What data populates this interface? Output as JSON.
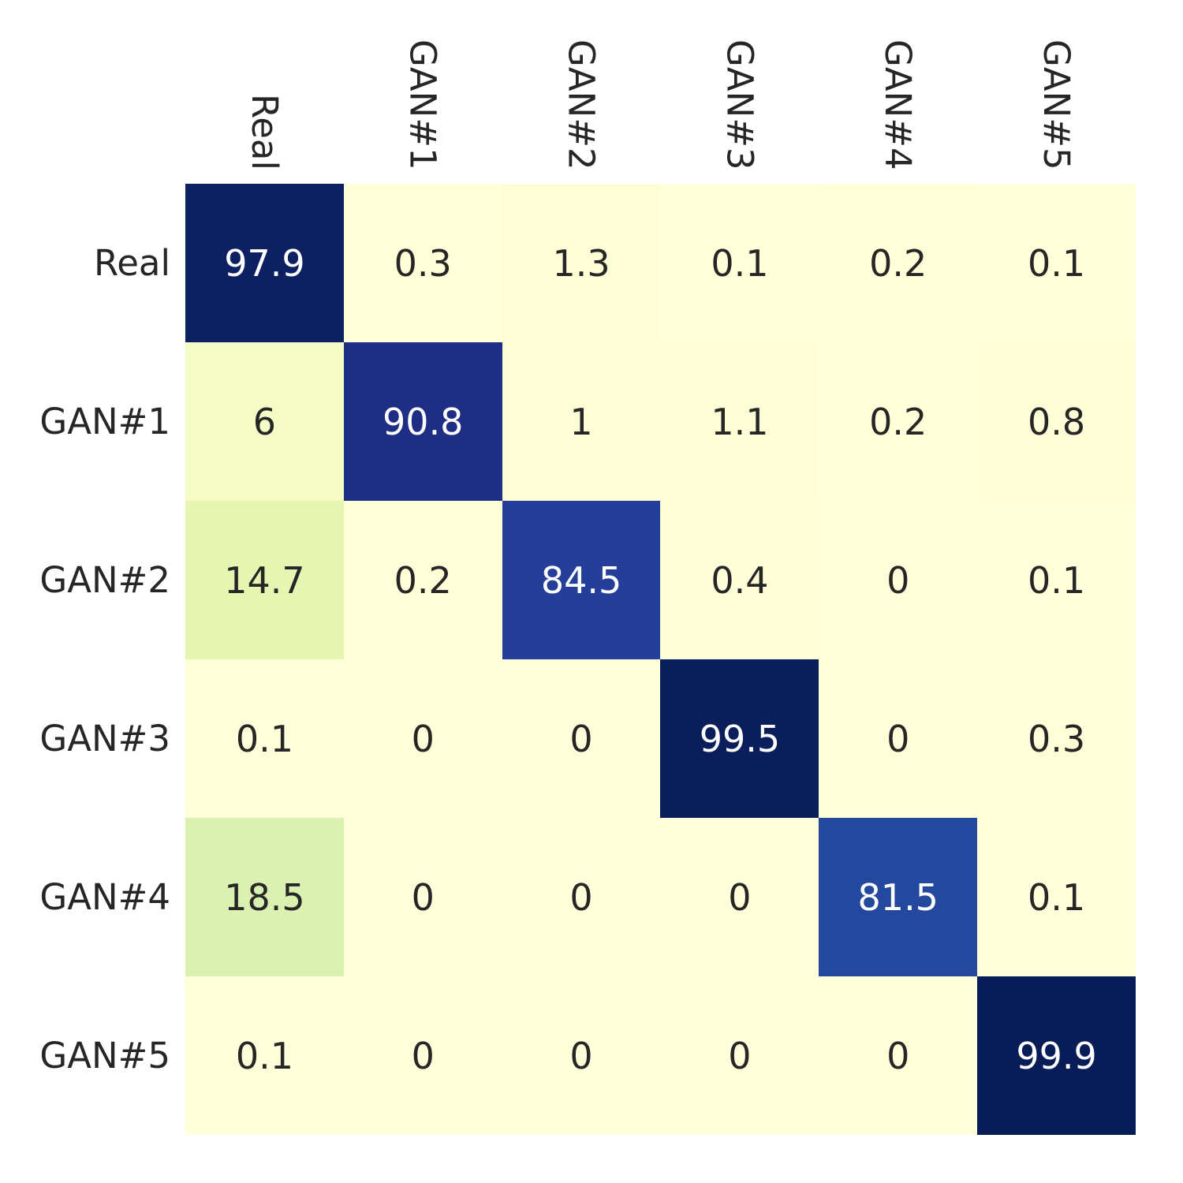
{
  "figure": {
    "kind": "confusion-matrix-heatmap",
    "background": "#ffffff"
  },
  "chart_data": {
    "type": "heatmap",
    "title": "",
    "row_labels": [
      "Real",
      "GAN#1",
      "GAN#2",
      "GAN#3",
      "GAN#4",
      "GAN#5"
    ],
    "col_labels": [
      "Real",
      "GAN#1",
      "GAN#2",
      "GAN#3",
      "GAN#4",
      "GAN#5"
    ],
    "matrix": [
      [
        97.9,
        0.3,
        1.3,
        0.1,
        0.2,
        0.1
      ],
      [
        6,
        90.8,
        1,
        1.1,
        0.2,
        0.8
      ],
      [
        14.7,
        0.2,
        84.5,
        0.4,
        0,
        0.1
      ],
      [
        0.1,
        0,
        0,
        99.5,
        0,
        0.3
      ],
      [
        18.5,
        0,
        0,
        0,
        81.5,
        0.1
      ],
      [
        0.1,
        0,
        0,
        0,
        0,
        99.9
      ]
    ],
    "value_range": [
      0,
      100
    ],
    "colorbar": "none",
    "grid": "off",
    "colormap": {
      "name": "YlGnBu",
      "stops": [
        {
          "t": 0.0,
          "color": "#ffffd9"
        },
        {
          "t": 0.125,
          "color": "#edf8b1"
        },
        {
          "t": 0.25,
          "color": "#c7e9b4"
        },
        {
          "t": 0.375,
          "color": "#7fcdbb"
        },
        {
          "t": 0.5,
          "color": "#41b6c4"
        },
        {
          "t": 0.625,
          "color": "#1d91c0"
        },
        {
          "t": 0.75,
          "color": "#225ea8"
        },
        {
          "t": 0.875,
          "color": "#253494"
        },
        {
          "t": 1.0,
          "color": "#081d58"
        }
      ]
    },
    "annotation_colors": {
      "on_light": "#262626",
      "on_dark": "#ffffff"
    },
    "tick_label_color": "#262626"
  }
}
